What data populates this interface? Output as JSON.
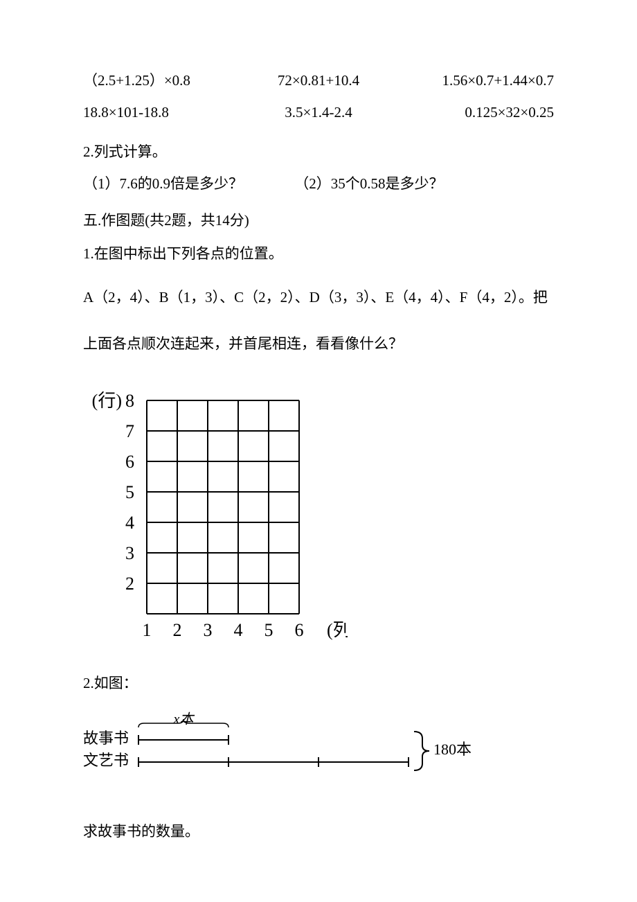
{
  "exprRow1": {
    "a": "（2.5+1.25）×0.8",
    "b": "72×0.81+10.4",
    "c": "1.56×0.7+1.44×0.7"
  },
  "exprRow2": {
    "a": "18.8×101-18.8",
    "b": "3.5×1.4-2.4",
    "c": "0.125×32×0.25"
  },
  "q2": {
    "title": "2.列式计算。",
    "sub1": "（1）7.6的0.9倍是多少？",
    "sub2": "（2）35个0.58是多少？"
  },
  "sectionFive": "五.作图题(共2题，共14分)",
  "drawQ1": {
    "title": "1.在图中标出下列各点的位置。",
    "pointsLine": "A（2，4）、B（1，3）、C（2，2）、D（3，3）、E（4，4）、F（4，2）。把",
    "pointsLineTail": "上面各点顺次连起来，并首尾相连，看看像什么？"
  },
  "grid": {
    "rowAxisLabel": "(行)",
    "colAxisLabel": "(列)",
    "rowTicks": [
      "8",
      "7",
      "6",
      "5",
      "4",
      "3",
      "2"
    ],
    "colTicks": [
      "1",
      "2",
      "3",
      "4",
      "5",
      "6"
    ],
    "cellSize": 44,
    "cols": 5,
    "rows": 7,
    "lineColor": "#000000",
    "lineWidth": 2,
    "fontSize": 26
  },
  "drawQ2": {
    "title": "2.如图：",
    "storyLabel": "故事书",
    "artLabel": "文艺书",
    "xLabel": "x本",
    "totalLabel": "180本",
    "storyUnits": 1,
    "artUnits": 3,
    "unitWidth": 130,
    "barGap": 32,
    "lineColor": "#000000",
    "fontSize": 22,
    "ask": "求故事书的数量。"
  }
}
